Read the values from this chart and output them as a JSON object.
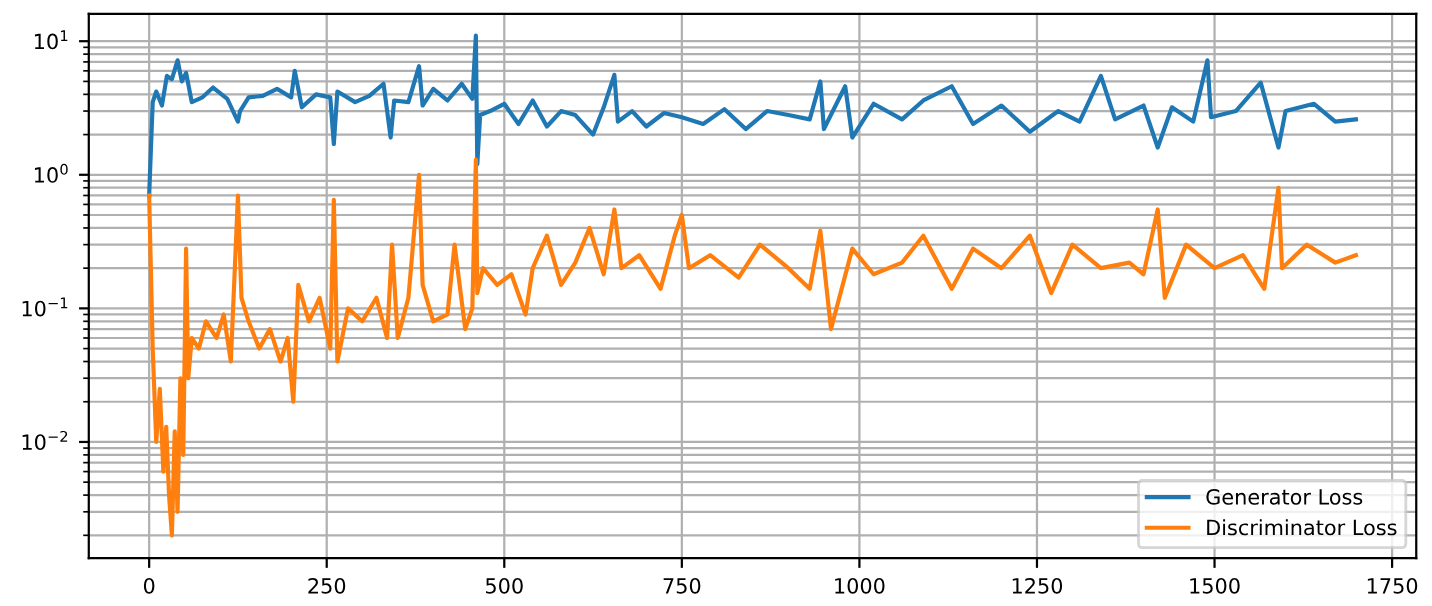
{
  "chart_data": {
    "type": "line",
    "log": "y",
    "grid": true,
    "legend": "bottom right",
    "xlim": [
      -85,
      1784
    ],
    "xticks": [
      0,
      250,
      500,
      750,
      1000,
      1250,
      1500,
      1750
    ],
    "ylim": [
      0.00135,
      16
    ],
    "yticks": [
      {
        "value": 0.01,
        "label": "10$^{−2}$"
      },
      {
        "value": 0.1,
        "label": "10$^{−1}$"
      },
      {
        "value": 1,
        "label": "10$^{0}$"
      },
      {
        "value": 10,
        "label": "10$^{1}$"
      }
    ],
    "series": [
      {
        "name": "Generator Loss",
        "color": "#1f77b4",
        "x": [
          0,
          5,
          10,
          18,
          25,
          32,
          40,
          46,
          52,
          60,
          75,
          90,
          110,
          125,
          128,
          140,
          160,
          180,
          200,
          205,
          215,
          235,
          255,
          260,
          265,
          290,
          310,
          330,
          340,
          345,
          365,
          380,
          385,
          400,
          420,
          440,
          455,
          460,
          462,
          466,
          480,
          500,
          520,
          540,
          560,
          580,
          600,
          625,
          640,
          655,
          660,
          680,
          700,
          725,
          750,
          780,
          810,
          840,
          870,
          900,
          930,
          945,
          950,
          980,
          990,
          1020,
          1060,
          1090,
          1130,
          1160,
          1200,
          1240,
          1280,
          1310,
          1340,
          1360,
          1400,
          1420,
          1440,
          1470,
          1490,
          1495,
          1530,
          1565,
          1590,
          1600,
          1640,
          1670,
          1699
        ],
        "values": [
          0.7,
          3.5,
          4.2,
          3.3,
          5.5,
          5.2,
          7.2,
          5.0,
          5.8,
          3.5,
          3.8,
          4.5,
          3.7,
          2.5,
          3.0,
          3.8,
          3.9,
          4.4,
          3.8,
          6.0,
          3.2,
          4.0,
          3.8,
          1.7,
          4.2,
          3.5,
          3.9,
          4.8,
          1.9,
          3.6,
          3.5,
          6.5,
          3.3,
          4.4,
          3.6,
          4.8,
          3.7,
          11.0,
          1.2,
          2.8,
          3.0,
          3.4,
          2.4,
          3.6,
          2.3,
          3.0,
          2.8,
          2.0,
          3.2,
          5.6,
          2.5,
          3.0,
          2.3,
          2.9,
          2.7,
          2.4,
          3.1,
          2.2,
          3.0,
          2.8,
          2.6,
          5.0,
          2.2,
          4.6,
          1.9,
          3.4,
          2.6,
          3.6,
          4.6,
          2.4,
          3.3,
          2.1,
          3.0,
          2.5,
          5.5,
          2.6,
          3.3,
          1.6,
          3.2,
          2.5,
          7.2,
          2.7,
          3.0,
          4.9,
          1.6,
          3.0,
          3.4,
          2.5,
          2.6
        ]
      },
      {
        "name": "Discriminator Loss",
        "color": "#ff7f0e",
        "x": [
          0,
          5,
          10,
          15,
          20,
          24,
          28,
          32,
          36,
          40,
          44,
          48,
          52,
          55,
          60,
          70,
          80,
          95,
          105,
          115,
          125,
          130,
          140,
          155,
          170,
          185,
          195,
          203,
          210,
          225,
          240,
          255,
          260,
          265,
          280,
          300,
          320,
          335,
          342,
          350,
          365,
          380,
          385,
          400,
          420,
          430,
          445,
          455,
          460,
          462,
          470,
          490,
          510,
          530,
          540,
          560,
          580,
          600,
          620,
          640,
          655,
          665,
          690,
          720,
          740,
          750,
          760,
          790,
          830,
          860,
          900,
          930,
          945,
          960,
          990,
          1020,
          1060,
          1090,
          1130,
          1160,
          1200,
          1240,
          1270,
          1300,
          1340,
          1380,
          1400,
          1420,
          1430,
          1460,
          1500,
          1540,
          1570,
          1590,
          1595,
          1630,
          1670,
          1699
        ],
        "values": [
          0.7,
          0.05,
          0.01,
          0.025,
          0.006,
          0.013,
          0.004,
          0.002,
          0.012,
          0.003,
          0.03,
          0.008,
          0.28,
          0.03,
          0.06,
          0.05,
          0.08,
          0.06,
          0.09,
          0.04,
          0.7,
          0.12,
          0.08,
          0.05,
          0.07,
          0.04,
          0.06,
          0.02,
          0.15,
          0.08,
          0.12,
          0.05,
          0.65,
          0.04,
          0.1,
          0.08,
          0.12,
          0.06,
          0.3,
          0.06,
          0.12,
          1.0,
          0.15,
          0.08,
          0.09,
          0.3,
          0.07,
          0.1,
          1.3,
          0.13,
          0.2,
          0.15,
          0.18,
          0.09,
          0.2,
          0.35,
          0.15,
          0.22,
          0.4,
          0.18,
          0.55,
          0.2,
          0.25,
          0.14,
          0.35,
          0.5,
          0.2,
          0.25,
          0.17,
          0.3,
          0.2,
          0.14,
          0.38,
          0.07,
          0.28,
          0.18,
          0.22,
          0.35,
          0.14,
          0.28,
          0.2,
          0.35,
          0.13,
          0.3,
          0.2,
          0.22,
          0.18,
          0.55,
          0.12,
          0.3,
          0.2,
          0.25,
          0.14,
          0.8,
          0.2,
          0.3,
          0.22,
          0.25
        ]
      }
    ]
  }
}
